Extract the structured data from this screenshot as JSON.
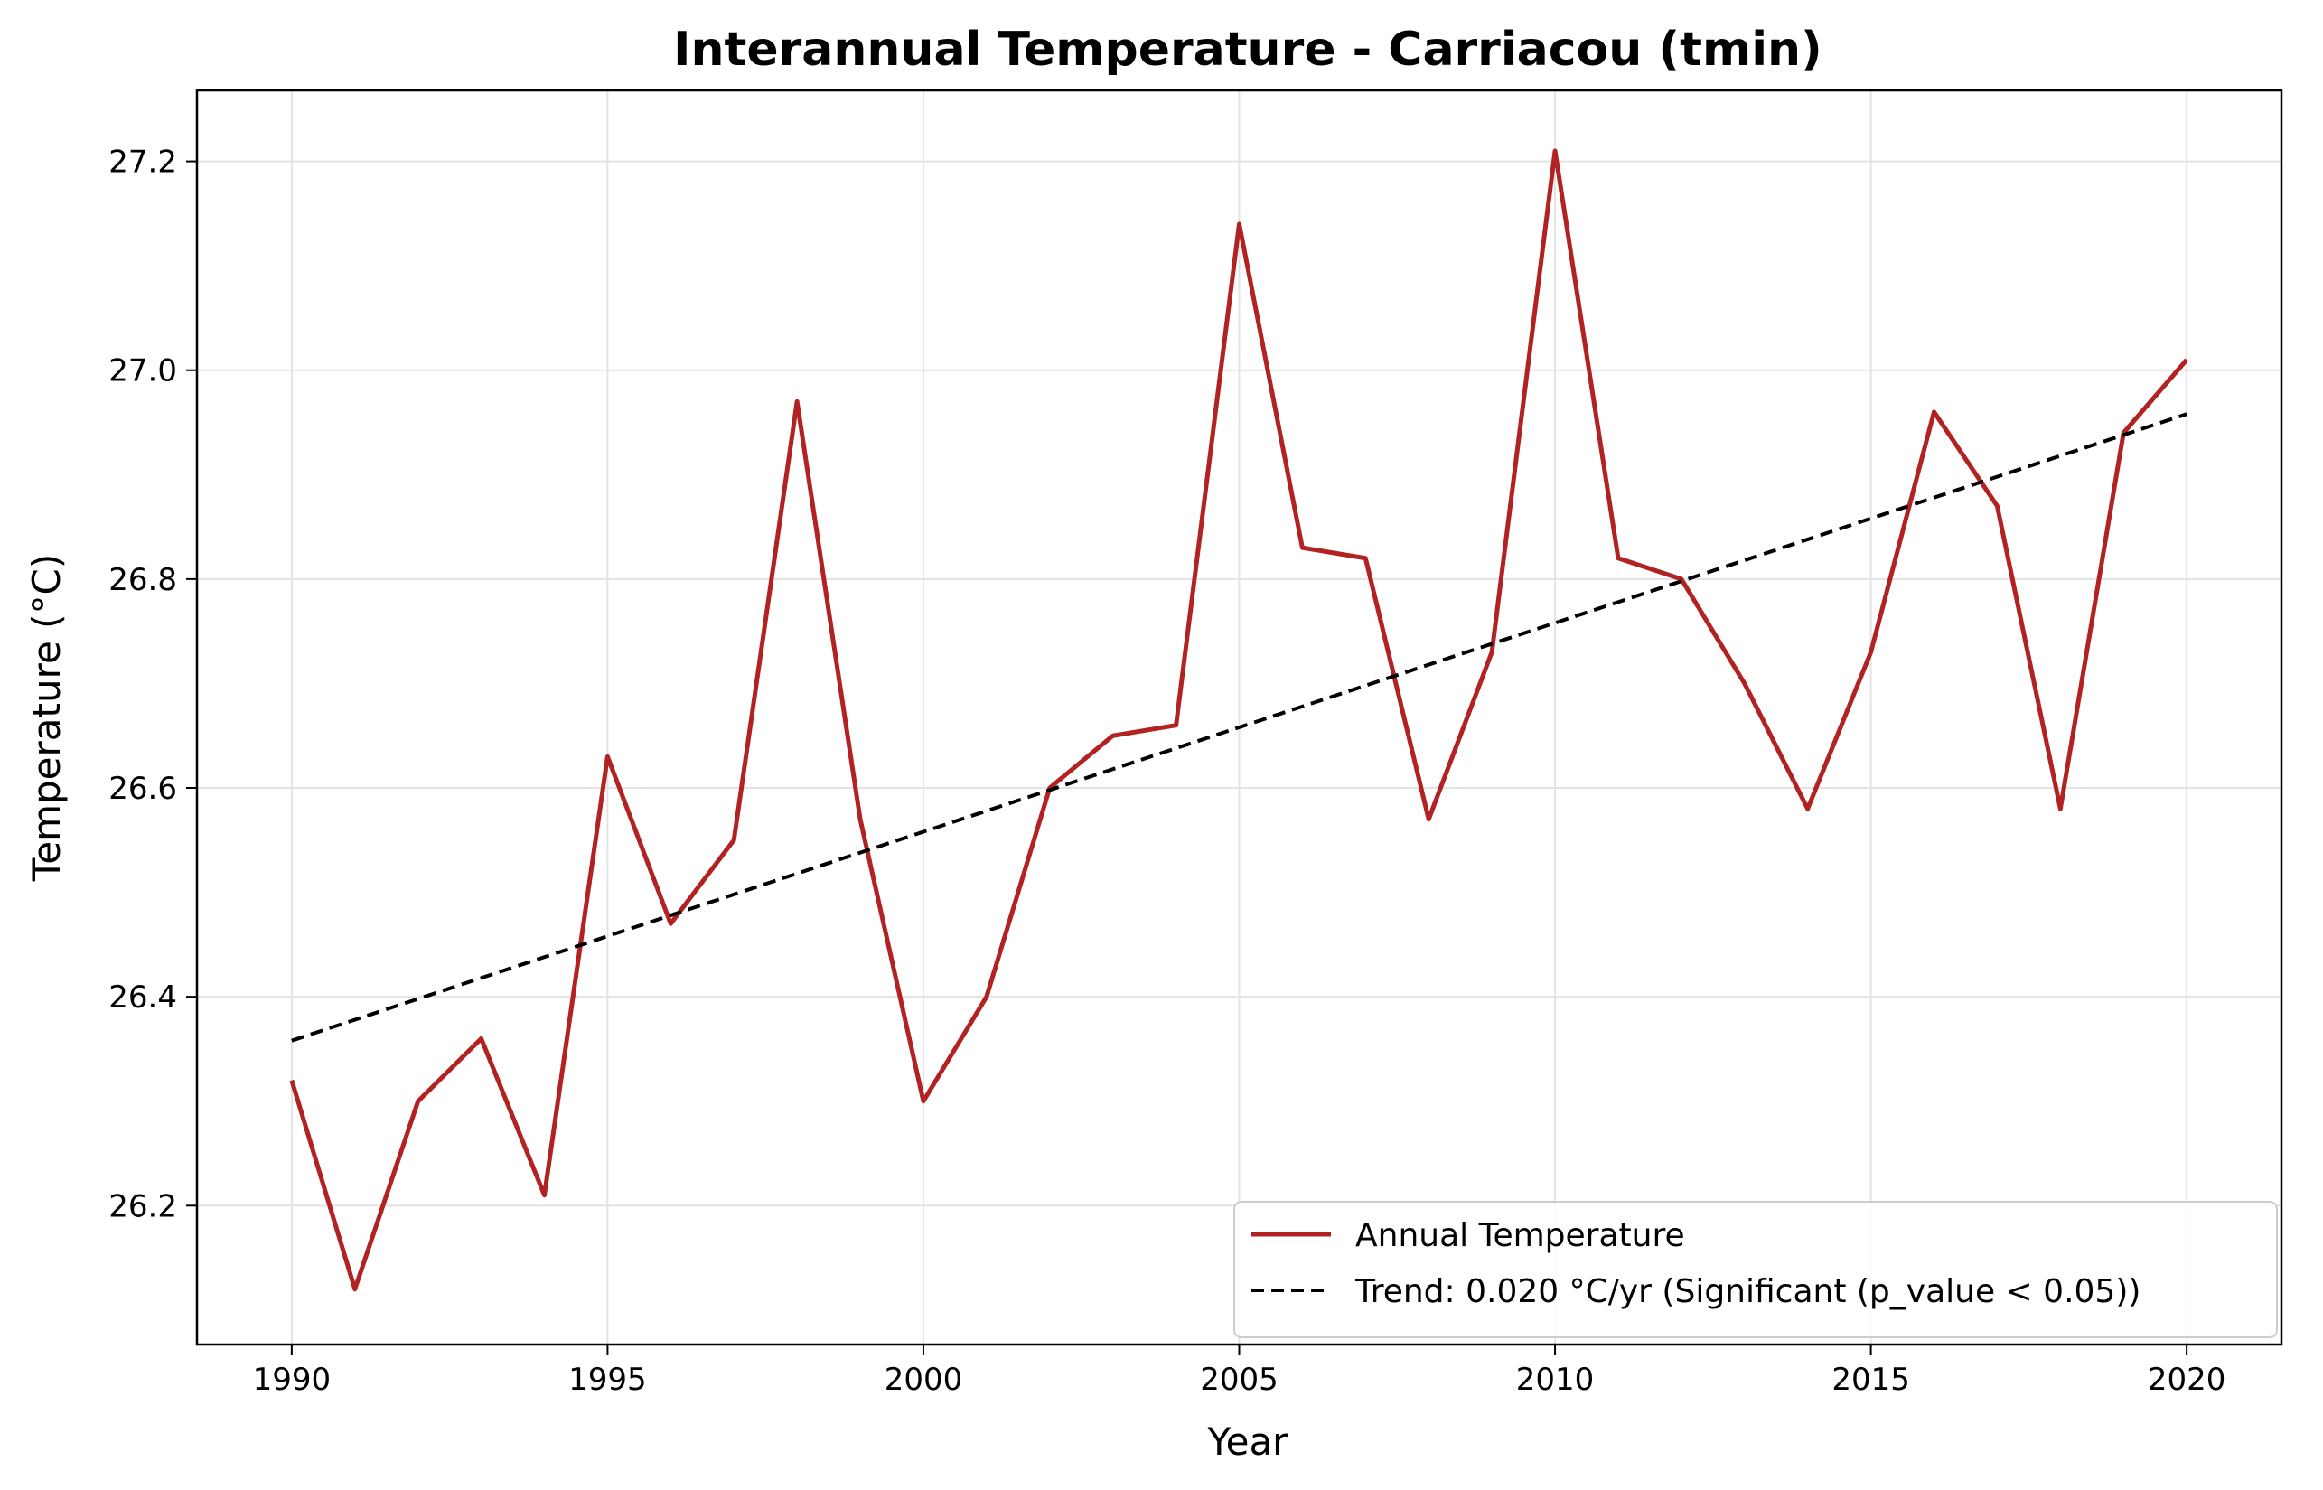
{
  "chart_data": {
    "type": "line",
    "title": "Interannual Temperature - Carriacou (tmin)",
    "xlabel": "Year",
    "ylabel": "Temperature (°C)",
    "xlim": [
      1988.5,
      2021.5
    ],
    "ylim": [
      26.067,
      27.268
    ],
    "xticks": [
      1990,
      1995,
      2000,
      2005,
      2010,
      2015,
      2020
    ],
    "yticks": [
      26.2,
      26.4,
      26.6,
      26.8,
      27.0,
      27.2
    ],
    "xtick_labels": [
      "1990",
      "1995",
      "2000",
      "2005",
      "2010",
      "2015",
      "2020"
    ],
    "ytick_labels": [
      "26.2",
      "26.4",
      "26.6",
      "26.8",
      "27.0",
      "27.2"
    ],
    "grid": true,
    "legend_position": "lower-right",
    "x": [
      1990,
      1991,
      1992,
      1993,
      1994,
      1995,
      1996,
      1997,
      1998,
      1999,
      2000,
      2001,
      2002,
      2003,
      2004,
      2005,
      2006,
      2007,
      2008,
      2009,
      2010,
      2011,
      2012,
      2013,
      2014,
      2015,
      2016,
      2017,
      2018,
      2019,
      2020
    ],
    "series": [
      {
        "name": "Annual Temperature",
        "color": "#b22222",
        "style": "solid",
        "values": [
          26.32,
          26.12,
          26.3,
          26.36,
          26.21,
          26.63,
          26.47,
          26.55,
          26.97,
          26.57,
          26.3,
          26.4,
          26.6,
          26.65,
          26.66,
          27.14,
          26.83,
          26.82,
          26.57,
          26.73,
          27.21,
          26.82,
          26.8,
          26.7,
          26.58,
          26.73,
          26.96,
          26.87,
          26.58,
          26.94,
          27.01
        ]
      },
      {
        "name": "Trend: 0.020 °C/yr (Significant (p_value < 0.05))",
        "color": "#000000",
        "style": "dashed",
        "x": [
          1990,
          2020
        ],
        "values": [
          26.358,
          26.958
        ]
      }
    ]
  }
}
